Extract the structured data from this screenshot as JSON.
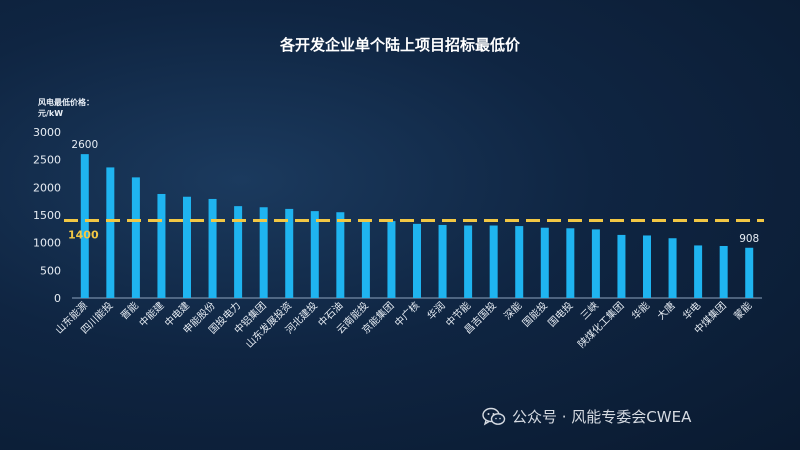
{
  "chart_data": {
    "type": "bar",
    "title": "各开发企业单个陆上项目招标最低价",
    "ylabel_line1": "风电最低价格：",
    "ylabel_line2": "元/kW",
    "ylim": [
      0,
      3000
    ],
    "yticks": [
      0,
      500,
      1000,
      1500,
      2000,
      2500,
      3000
    ],
    "categories": [
      "山东能源",
      "四川能投",
      "晋能",
      "中能建",
      "中电建",
      "申能股份",
      "国投电力",
      "中铝集团",
      "山东发展投资",
      "河北建投",
      "中石油",
      "云南能投",
      "京能集团",
      "中广核",
      "华润",
      "中节能",
      "昌吉国投",
      "深能",
      "国能投",
      "国电投",
      "三峡",
      "陕煤化工集团",
      "华能",
      "大唐",
      "华电",
      "中煤集团",
      "蒙能"
    ],
    "values": [
      2600,
      2360,
      2180,
      1880,
      1830,
      1790,
      1660,
      1640,
      1610,
      1570,
      1550,
      1400,
      1390,
      1340,
      1320,
      1310,
      1310,
      1300,
      1270,
      1260,
      1240,
      1140,
      1130,
      1080,
      950,
      940,
      908
    ],
    "data_labels": [
      {
        "index": 0,
        "text": "2600"
      },
      {
        "index": 26,
        "text": "908"
      }
    ],
    "reference_line": {
      "value": 1400,
      "label": "1400",
      "color": "#f2c744",
      "style": "dashed"
    },
    "bar_color": "#1fb4f0",
    "grid": false,
    "legend": "none"
  },
  "watermark": {
    "icon": "wechat-icon",
    "text": "公众号 · 风能专委会CWEA"
  }
}
